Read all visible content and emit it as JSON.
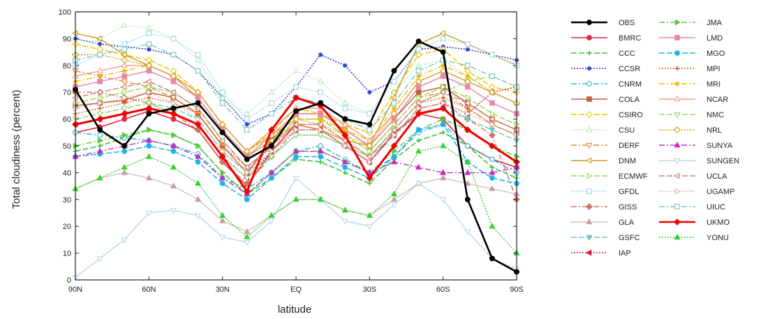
{
  "chart_data": {
    "type": "line",
    "title": "",
    "xlabel": "latitude",
    "ylabel": "Total cloudiness (percent)",
    "x": [
      90,
      80,
      70,
      60,
      50,
      40,
      30,
      20,
      10,
      0,
      -10,
      -20,
      -30,
      -40,
      -50,
      -60,
      -70,
      -80,
      -90
    ],
    "x_tick_labels": [
      "90N",
      "60N",
      "30N",
      "EQ",
      "30S",
      "60S",
      "90S"
    ],
    "x_tick_values": [
      90,
      60,
      30,
      0,
      -30,
      -60,
      -90
    ],
    "xlim": [
      90,
      -90
    ],
    "ylim": [
      0,
      100
    ],
    "y_ticks": [
      0,
      10,
      20,
      30,
      40,
      50,
      60,
      70,
      80,
      90,
      100
    ],
    "legend_position": "right, two columns outside plot",
    "series": [
      {
        "name": "OBS",
        "color": "#000000",
        "dash": "",
        "marker": "circle",
        "width": 2.6,
        "values": [
          71,
          56,
          50,
          62,
          64,
          66,
          55,
          45,
          50,
          63,
          66,
          60,
          58,
          78,
          89,
          85,
          30,
          8,
          3
        ]
      },
      {
        "name": "BMRC",
        "color": "#e8243a",
        "dash": "",
        "marker": "circle",
        "width": 1.6,
        "values": [
          55,
          57,
          60,
          63,
          60,
          56,
          44,
          35,
          48,
          58,
          56,
          50,
          44,
          55,
          62,
          60,
          50,
          45,
          42
        ]
      },
      {
        "name": "CCC",
        "color": "#3ec43a",
        "dash": "8,3",
        "marker": "plus",
        "width": 1.6,
        "values": [
          48,
          50,
          53,
          56,
          54,
          50,
          40,
          32,
          38,
          45,
          44,
          40,
          36,
          45,
          52,
          55,
          50,
          42,
          38
        ]
      },
      {
        "name": "CCSR",
        "color": "#2a3fc9",
        "dash": "2,2",
        "marker": "star",
        "width": 1.6,
        "values": [
          90,
          88,
          87,
          86,
          84,
          78,
          68,
          58,
          62,
          72,
          84,
          80,
          70,
          74,
          86,
          87,
          86,
          84,
          82
        ]
      },
      {
        "name": "CNRM",
        "color": "#2bb6d8",
        "dash": "8,3,2,3",
        "marker": "circle-open",
        "width": 1.5,
        "values": [
          55,
          54,
          53,
          52,
          50,
          47,
          38,
          34,
          40,
          48,
          50,
          45,
          40,
          46,
          55,
          58,
          50,
          45,
          40
        ]
      },
      {
        "name": "COLA",
        "color": "#c0603a",
        "dash": "",
        "marker": "square",
        "width": 1.5,
        "values": [
          65,
          66,
          67,
          70,
          68,
          62,
          50,
          40,
          52,
          62,
          62,
          56,
          50,
          60,
          70,
          72,
          66,
          60,
          56
        ]
      },
      {
        "name": "CSIRO",
        "color": "#f2c200",
        "dash": "8,3",
        "marker": "diamond-open",
        "width": 1.5,
        "values": [
          88,
          86,
          84,
          82,
          78,
          70,
          58,
          48,
          55,
          64,
          62,
          58,
          55,
          70,
          84,
          86,
          78,
          72,
          70
        ]
      },
      {
        "name": "CSU",
        "color": "#b8e8b0",
        "dash": "2,2",
        "marker": "triangle-open",
        "width": 1.4,
        "values": [
          82,
          90,
          95,
          94,
          90,
          82,
          68,
          62,
          70,
          78,
          74,
          66,
          62,
          70,
          80,
          82,
          76,
          70,
          66
        ]
      },
      {
        "name": "DERF",
        "color": "#e08a30",
        "dash": "8,3,2,3",
        "marker": "triangle-down-open",
        "width": 1.4,
        "values": [
          78,
          76,
          74,
          72,
          68,
          62,
          50,
          40,
          50,
          60,
          60,
          54,
          48,
          58,
          68,
          70,
          64,
          58,
          54
        ]
      },
      {
        "name": "DNM",
        "color": "#c89a20",
        "dash": "",
        "marker": "triangle-left-open",
        "width": 1.4,
        "values": [
          92,
          90,
          84,
          80,
          76,
          68,
          56,
          46,
          52,
          58,
          56,
          52,
          50,
          68,
          88,
          92,
          88,
          84,
          80
        ]
      },
      {
        "name": "ECMWF",
        "color": "#9ad84a",
        "dash": "8,3",
        "marker": "triangle-right-open",
        "width": 1.4,
        "values": [
          66,
          68,
          70,
          72,
          70,
          64,
          52,
          42,
          50,
          60,
          60,
          54,
          48,
          58,
          68,
          72,
          68,
          62,
          58
        ]
      },
      {
        "name": "GFDL",
        "color": "#9ad4e8",
        "dash": "2,2",
        "marker": "square-open",
        "width": 1.4,
        "values": [
          80,
          84,
          88,
          92,
          90,
          84,
          70,
          60,
          66,
          72,
          70,
          64,
          62,
          74,
          86,
          90,
          88,
          84,
          80
        ]
      },
      {
        "name": "GISS",
        "color": "#c87860",
        "dash": "8,3,2,3",
        "marker": "diamond",
        "width": 1.4,
        "values": [
          70,
          70,
          68,
          66,
          62,
          56,
          44,
          36,
          46,
          56,
          56,
          50,
          44,
          54,
          64,
          66,
          60,
          54,
          30
        ]
      },
      {
        "name": "GLA",
        "color": "#c4a0a0",
        "dash": "2,1",
        "marker": "triangle",
        "width": 1.4,
        "values": [
          34,
          38,
          40,
          38,
          35,
          30,
          22,
          18,
          24,
          30,
          30,
          26,
          24,
          30,
          36,
          38,
          36,
          34,
          32
        ]
      },
      {
        "name": "GSFC",
        "color": "#6cc8c0",
        "dash": "8,3",
        "marker": "triangle-down",
        "width": 1.4,
        "values": [
          60,
          62,
          64,
          66,
          64,
          60,
          48,
          40,
          46,
          54,
          54,
          50,
          46,
          54,
          62,
          64,
          60,
          56,
          52
        ]
      },
      {
        "name": "IAP",
        "color": "#e01838",
        "dash": "2,2",
        "marker": "triangle-left",
        "width": 1.5,
        "values": [
          58,
          60,
          62,
          64,
          62,
          58,
          46,
          38,
          48,
          56,
          56,
          50,
          44,
          54,
          64,
          66,
          62,
          70,
          72
        ]
      },
      {
        "name": "JMA",
        "color": "#5cc83a",
        "dash": "8,3,2,3",
        "marker": "triangle-right",
        "width": 1.5,
        "values": [
          50,
          52,
          54,
          56,
          54,
          50,
          40,
          32,
          40,
          48,
          48,
          44,
          40,
          48,
          56,
          60,
          56,
          50,
          46
        ]
      },
      {
        "name": "LMD",
        "color": "#e888a8",
        "dash": "",
        "marker": "square",
        "width": 1.5,
        "values": [
          72,
          74,
          76,
          78,
          74,
          68,
          56,
          46,
          54,
          62,
          62,
          56,
          50,
          60,
          72,
          76,
          72,
          66,
          62
        ]
      },
      {
        "name": "MGO",
        "color": "#1cb4e8",
        "dash": "8,3",
        "marker": "circle",
        "width": 1.5,
        "values": [
          46,
          47,
          48,
          50,
          48,
          44,
          36,
          30,
          38,
          46,
          46,
          42,
          38,
          46,
          56,
          58,
          44,
          38,
          36
        ]
      },
      {
        "name": "MPI",
        "color": "#e06020",
        "dash": "2,2",
        "marker": "plus",
        "width": 1.4,
        "values": [
          62,
          64,
          66,
          68,
          66,
          62,
          50,
          42,
          50,
          58,
          58,
          52,
          46,
          56,
          66,
          68,
          64,
          58,
          54
        ]
      },
      {
        "name": "MRI",
        "color": "#f0b800",
        "dash": "8,3,2,3",
        "marker": "star",
        "width": 1.4,
        "values": [
          74,
          76,
          78,
          80,
          76,
          70,
          58,
          48,
          54,
          60,
          60,
          56,
          52,
          64,
          76,
          80,
          76,
          70,
          66
        ]
      },
      {
        "name": "NCAR",
        "color": "#f09a88",
        "dash": "",
        "marker": "triangle-open",
        "width": 1.4,
        "values": [
          76,
          78,
          80,
          80,
          76,
          70,
          58,
          48,
          56,
          64,
          64,
          58,
          52,
          62,
          74,
          78,
          74,
          70,
          66
        ]
      },
      {
        "name": "NMC",
        "color": "#98dc78",
        "dash": "8,3",
        "marker": "triangle-down-open",
        "width": 1.4,
        "values": [
          60,
          62,
          64,
          66,
          62,
          58,
          46,
          38,
          46,
          54,
          54,
          50,
          46,
          56,
          66,
          70,
          74,
          76,
          72
        ]
      },
      {
        "name": "NRL",
        "color": "#c8a000",
        "dash": "2,2",
        "marker": "diamond-open",
        "width": 1.4,
        "values": [
          84,
          84,
          82,
          80,
          76,
          70,
          58,
          48,
          54,
          60,
          58,
          54,
          50,
          62,
          74,
          78,
          74,
          70,
          66
        ]
      },
      {
        "name": "SUNYA",
        "color": "#c030c0",
        "dash": "8,3,2,3",
        "marker": "triangle",
        "width": 1.4,
        "values": [
          46,
          48,
          50,
          52,
          50,
          46,
          38,
          32,
          40,
          48,
          48,
          44,
          40,
          44,
          42,
          40,
          40,
          40,
          42
        ]
      },
      {
        "name": "SUNGEN",
        "color": "#b8d8f0",
        "dash": "",
        "marker": "triangle-down-open",
        "width": 1.4,
        "values": [
          1,
          8,
          15,
          25,
          26,
          24,
          16,
          14,
          22,
          38,
          30,
          22,
          20,
          28,
          36,
          30,
          18,
          8,
          4
        ]
      },
      {
        "name": "UCLA",
        "color": "#d07878",
        "dash": "8,3",
        "marker": "triangle-left-open",
        "width": 1.4,
        "values": [
          68,
          70,
          72,
          74,
          70,
          64,
          52,
          42,
          50,
          58,
          58,
          52,
          46,
          56,
          66,
          70,
          66,
          60,
          56
        ]
      },
      {
        "name": "UGAMP",
        "color": "#d4b4a8",
        "dash": "2,2",
        "marker": "triangle-right-open",
        "width": 1.4,
        "values": [
          64,
          66,
          68,
          70,
          66,
          60,
          48,
          40,
          48,
          56,
          56,
          50,
          44,
          54,
          64,
          66,
          62,
          58,
          54
        ]
      },
      {
        "name": "UIUC",
        "color": "#78c4c4",
        "dash": "8,3,2,3",
        "marker": "square-open",
        "width": 1.4,
        "values": [
          82,
          84,
          86,
          88,
          84,
          78,
          66,
          56,
          62,
          68,
          66,
          60,
          56,
          66,
          78,
          82,
          80,
          76,
          72
        ]
      },
      {
        "name": "UKMO",
        "color": "#f00000",
        "dash": "",
        "marker": "diamond",
        "width": 3.0,
        "values": [
          58,
          60,
          62,
          64,
          62,
          58,
          46,
          33,
          56,
          68,
          65,
          54,
          38,
          50,
          62,
          64,
          56,
          50,
          44
        ]
      },
      {
        "name": "YONU",
        "color": "#38d030",
        "dash": "2,2",
        "marker": "triangle",
        "width": 1.4,
        "values": [
          34,
          38,
          42,
          46,
          42,
          36,
          24,
          16,
          24,
          30,
          30,
          26,
          24,
          32,
          48,
          50,
          44,
          20,
          10
        ]
      }
    ]
  }
}
